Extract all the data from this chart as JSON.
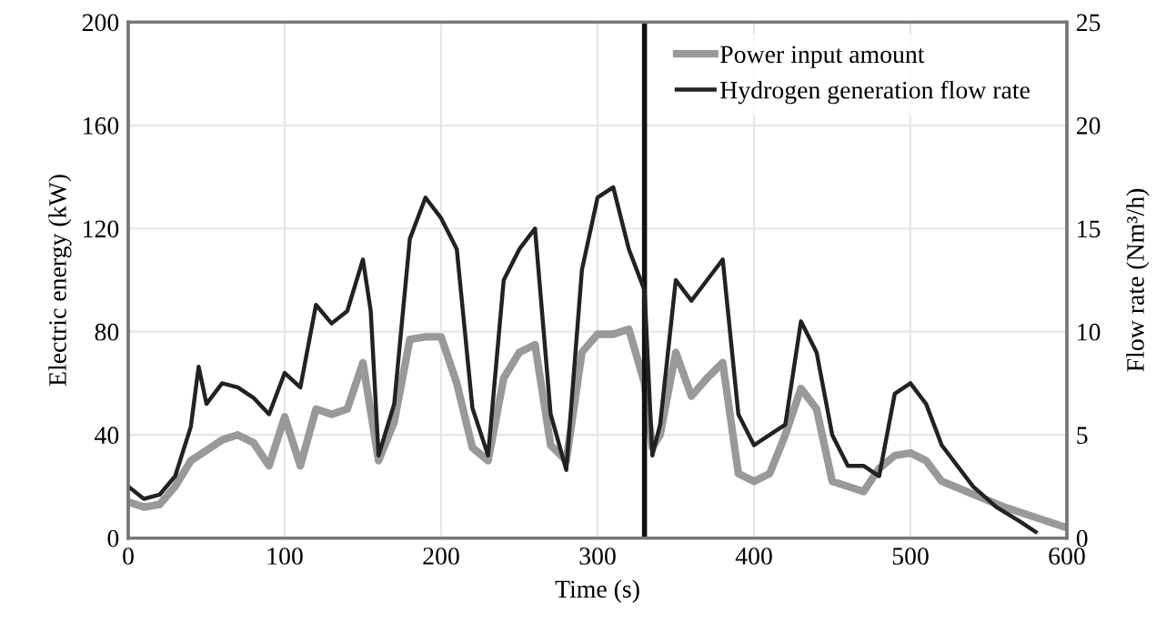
{
  "chart_data": {
    "type": "line",
    "xlabel": "Time (s)",
    "ylabel": "Electric energy (kW)",
    "y2label": "Flow rate (Nm³/h)",
    "xlim": [
      0,
      600
    ],
    "xticks": [
      0,
      100,
      200,
      300,
      400,
      500,
      600
    ],
    "ylim": [
      0,
      200
    ],
    "yticks": [
      0,
      40,
      80,
      120,
      160,
      200
    ],
    "y2lim": [
      0,
      25
    ],
    "y2ticks": [
      0,
      5,
      10,
      15,
      20,
      25
    ],
    "grid": true,
    "legend": "top right",
    "marker": "none",
    "line_style": "solid",
    "ref_lines": [
      {
        "axis": "x",
        "value": 330,
        "label": null,
        "color": "#111111"
      }
    ],
    "series": [
      {
        "name": "Power input amount",
        "color": "#999999",
        "x": [
          0,
          10,
          20,
          30,
          40,
          50,
          60,
          70,
          80,
          90,
          100,
          110,
          120,
          130,
          140,
          150,
          160,
          170,
          180,
          190,
          200,
          210,
          220,
          230,
          240,
          250,
          260,
          270,
          280,
          290,
          300,
          310,
          320,
          330,
          335,
          340,
          350,
          360,
          370,
          380,
          390,
          400,
          410,
          420,
          430,
          440,
          450,
          460,
          470,
          480,
          490,
          500,
          510,
          520,
          540,
          560,
          580,
          600
        ],
        "values": [
          14,
          12,
          13,
          20,
          30,
          34,
          38,
          40,
          37,
          28,
          47,
          28,
          50,
          48,
          50,
          68,
          30,
          45,
          77,
          78,
          78,
          60,
          35,
          30,
          62,
          72,
          75,
          36,
          30,
          72,
          79,
          79,
          81,
          60,
          35,
          40,
          72,
          55,
          62,
          68,
          25,
          22,
          25,
          40,
          58,
          50,
          22,
          20,
          18,
          27,
          32,
          33,
          30,
          22,
          17,
          12,
          8,
          4
        ]
      },
      {
        "name": "Hydrogen generation flow rate",
        "color": "#222222",
        "axis": "y2",
        "x": [
          0,
          10,
          20,
          30,
          40,
          45,
          50,
          60,
          70,
          80,
          90,
          100,
          110,
          120,
          130,
          140,
          150,
          155,
          160,
          170,
          180,
          190,
          200,
          210,
          220,
          230,
          240,
          250,
          260,
          270,
          280,
          290,
          300,
          310,
          320,
          330,
          335,
          340,
          350,
          360,
          370,
          380,
          390,
          400,
          410,
          420,
          430,
          440,
          450,
          460,
          470,
          480,
          490,
          500,
          510,
          520,
          540,
          555,
          570,
          580
        ],
        "values": [
          2.5,
          1.9,
          2.1,
          3.0,
          5.4,
          8.3,
          6.5,
          7.5,
          7.3,
          6.8,
          6.0,
          8.0,
          7.3,
          11.3,
          10.4,
          11.0,
          13.5,
          11.0,
          4.0,
          6.5,
          14.5,
          16.5,
          15.5,
          14.0,
          6.3,
          4.0,
          12.5,
          14.0,
          15.0,
          6.0,
          3.3,
          13.0,
          16.5,
          17.0,
          14.0,
          12.0,
          4.0,
          5.5,
          12.5,
          11.5,
          12.5,
          13.5,
          6.0,
          4.5,
          5.0,
          5.5,
          10.5,
          9.0,
          5.0,
          3.5,
          3.5,
          3.0,
          7.0,
          7.5,
          6.5,
          4.5,
          2.5,
          1.5,
          0.8,
          0.3
        ]
      }
    ]
  }
}
